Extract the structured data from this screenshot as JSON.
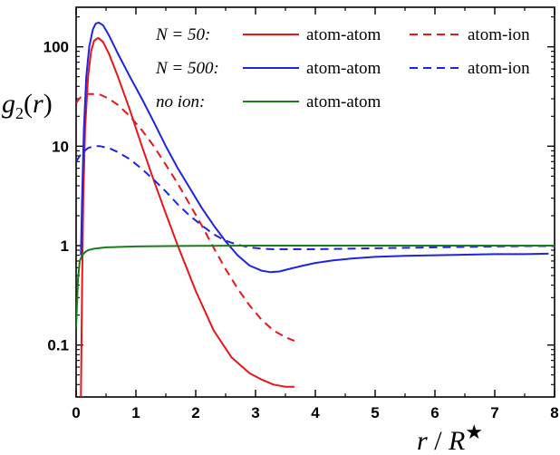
{
  "chart_data": {
    "type": "line",
    "title": "",
    "xlabel": "r / R★",
    "ylabel": "g2(r)",
    "xlim": [
      0,
      8
    ],
    "ylim": [
      0.03,
      250
    ],
    "yscale": "log",
    "xticks": [
      0,
      1,
      2,
      3,
      4,
      5,
      6,
      7,
      8
    ],
    "yticks": [
      0.1,
      1,
      10,
      100
    ],
    "ytick_labels": [
      "0.1",
      "1",
      "10",
      "100"
    ],
    "grid": false,
    "legend": {
      "placement": "top-right",
      "rows": [
        {
          "group": "N = 50:",
          "solid": "atom-atom",
          "dashed": "atom-ion",
          "color": "#e8151b"
        },
        {
          "group": "N = 500:",
          "solid": "atom-atom",
          "dashed": "atom-ion",
          "color": "#1f24e0"
        },
        {
          "group": "no ion:",
          "solid": "atom-atom",
          "dashed": "",
          "color": "#1a7d1a"
        }
      ]
    },
    "series": [
      {
        "group": "N = 50:",
        "kind": "atom-atom",
        "color": "#e8151b",
        "dash": "solid",
        "x": [
          0.08,
          0.1,
          0.12,
          0.15,
          0.2,
          0.25,
          0.3,
          0.37,
          0.45,
          0.55,
          0.7,
          0.9,
          1.1,
          1.3,
          1.5,
          1.7,
          2.0,
          2.3,
          2.6,
          2.9,
          3.1,
          3.3,
          3.5,
          3.65
        ],
        "y": [
          0.03,
          0.4,
          3,
          15,
          50,
          90,
          115,
          123,
          112,
          85,
          50,
          23,
          10,
          4.5,
          2.1,
          1.0,
          0.35,
          0.14,
          0.075,
          0.052,
          0.045,
          0.04,
          0.038,
          0.038
        ]
      },
      {
        "group": "N = 50:",
        "kind": "atom-ion",
        "color": "#e8151b",
        "dash": "dashed",
        "x": [
          0.0,
          0.05,
          0.1,
          0.2,
          0.3,
          0.4,
          0.55,
          0.7,
          0.9,
          1.1,
          1.3,
          1.5,
          1.7,
          1.9,
          2.1,
          2.3,
          2.5,
          2.7,
          2.9,
          3.1,
          3.3,
          3.5,
          3.65
        ],
        "y": [
          27,
          30,
          32,
          33.5,
          33.5,
          33,
          30,
          26,
          20,
          14.5,
          10,
          6.5,
          4.2,
          2.6,
          1.6,
          0.95,
          0.58,
          0.37,
          0.25,
          0.18,
          0.14,
          0.12,
          0.11
        ]
      },
      {
        "group": "N = 500:",
        "kind": "atom-atom",
        "color": "#1f24e0",
        "dash": "solid",
        "x": [
          0.08,
          0.1,
          0.13,
          0.17,
          0.22,
          0.28,
          0.33,
          0.38,
          0.45,
          0.55,
          0.7,
          0.9,
          1.1,
          1.3,
          1.5,
          1.7,
          1.9,
          2.1,
          2.3,
          2.5,
          2.7,
          2.9,
          3.1,
          3.25,
          3.4,
          3.6,
          3.8,
          4.0,
          4.3,
          4.6,
          5.0,
          5.5,
          6.0,
          6.5,
          7.0,
          7.5,
          7.9
        ],
        "y": [
          0.8,
          3,
          15,
          50,
          100,
          150,
          172,
          175,
          165,
          130,
          85,
          50,
          30,
          17.5,
          10,
          6,
          3.8,
          2.4,
          1.6,
          1.1,
          0.8,
          0.63,
          0.56,
          0.54,
          0.55,
          0.59,
          0.63,
          0.67,
          0.71,
          0.74,
          0.77,
          0.79,
          0.8,
          0.81,
          0.82,
          0.82,
          0.83
        ]
      },
      {
        "group": "N = 500:",
        "kind": "atom-ion",
        "color": "#1f24e0",
        "dash": "dashed",
        "x": [
          0.0,
          0.05,
          0.1,
          0.2,
          0.3,
          0.4,
          0.55,
          0.7,
          0.9,
          1.1,
          1.3,
          1.5,
          1.7,
          1.9,
          2.1,
          2.3,
          2.5,
          2.7,
          2.9,
          3.1,
          3.3,
          3.6,
          4.0,
          4.5,
          5.0,
          5.5,
          6.0,
          6.5,
          7.0,
          7.5,
          8.0
        ],
        "y": [
          7,
          7.8,
          8.6,
          9.6,
          10,
          10,
          9.6,
          8.7,
          7.4,
          5.9,
          4.6,
          3.5,
          2.6,
          2.0,
          1.6,
          1.3,
          1.12,
          1.02,
          0.96,
          0.93,
          0.92,
          0.92,
          0.92,
          0.93,
          0.94,
          0.95,
          0.96,
          0.97,
          0.98,
          0.99,
          0.99
        ]
      },
      {
        "group": "no ion:",
        "kind": "atom-atom",
        "color": "#1a7d1a",
        "dash": "solid",
        "x": [
          0.0,
          0.03,
          0.06,
          0.1,
          0.15,
          0.2,
          0.3,
          0.5,
          0.75,
          1.0,
          1.5,
          2.0,
          3.0,
          4.0,
          5.0,
          6.0,
          7.0,
          8.0
        ],
        "y": [
          0.15,
          0.45,
          0.7,
          0.8,
          0.86,
          0.9,
          0.93,
          0.96,
          0.97,
          0.98,
          0.99,
          0.995,
          1.0,
          1.0,
          1.0,
          1.0,
          1.0,
          1.0
        ]
      }
    ]
  }
}
